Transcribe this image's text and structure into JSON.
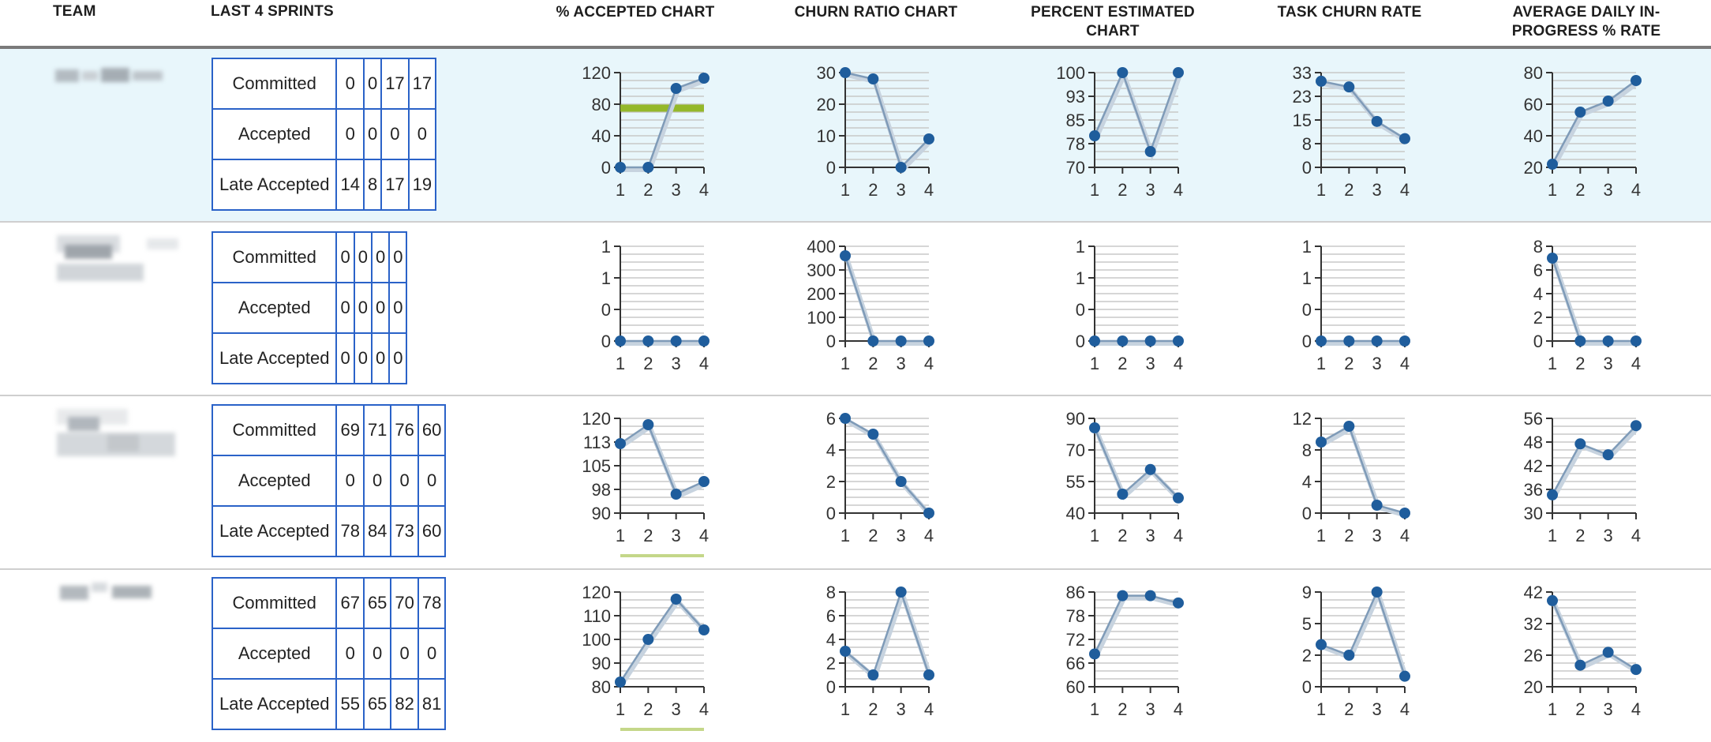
{
  "header": {
    "team": "TEAM",
    "last4": "LAST 4 SPRINTS",
    "accepted": "% ACCEPTED CHART",
    "churn": "CHURN RATIO CHART",
    "estimated_l1": "PERCENT ESTIMATED",
    "estimated_l2": "CHART",
    "task_churn": "TASK CHURN RATE",
    "daily_l1": "AVERAGE DAILY IN-",
    "daily_l2": "PROGRESS % RATE"
  },
  "colors": {
    "accent_line": "#2a62c8",
    "point": "#1f5d9c",
    "target": "#94b82a",
    "selected_row": "#e8f6fb"
  },
  "rows": [
    {
      "team": "",
      "sprints": [
        {
          "label": "Committed",
          "values": [
            "0",
            "0",
            "17",
            "17"
          ]
        },
        {
          "label": "Accepted",
          "values": [
            "0",
            "0",
            "0",
            "0"
          ]
        },
        {
          "label": "Late Accepted",
          "values": [
            "14",
            "8",
            "17",
            "19"
          ]
        }
      ]
    },
    {
      "team": "",
      "sprints": [
        {
          "label": "Committed",
          "values": [
            "0",
            "0",
            "0",
            "0"
          ]
        },
        {
          "label": "Accepted",
          "values": [
            "0",
            "0",
            "0",
            "0"
          ]
        },
        {
          "label": "Late Accepted",
          "values": [
            "0",
            "0",
            "0",
            "0"
          ]
        }
      ]
    },
    {
      "team": "",
      "sprints": [
        {
          "label": "Committed",
          "values": [
            "69",
            "71",
            "76",
            "60"
          ]
        },
        {
          "label": "Accepted",
          "values": [
            "0",
            "0",
            "0",
            "0"
          ]
        },
        {
          "label": "Late Accepted",
          "values": [
            "78",
            "84",
            "73",
            "60"
          ]
        }
      ]
    },
    {
      "team": "",
      "sprints": [
        {
          "label": "Committed",
          "values": [
            "67",
            "65",
            "70",
            "78"
          ]
        },
        {
          "label": "Accepted",
          "values": [
            "0",
            "0",
            "0",
            "0"
          ]
        },
        {
          "label": "Late Accepted",
          "values": [
            "55",
            "65",
            "82",
            "81"
          ]
        }
      ]
    }
  ],
  "chart_data": [
    {
      "type": "line",
      "row": 0,
      "column": "% ACCEPTED CHART",
      "x": [
        1,
        2,
        3,
        4
      ],
      "values": [
        0,
        0,
        100,
        113
      ],
      "yticks": [
        "120",
        "80",
        "40",
        "0"
      ],
      "ylim": [
        0,
        120
      ],
      "target": 75
    },
    {
      "type": "line",
      "row": 0,
      "column": "CHURN RATIO CHART",
      "x": [
        1,
        2,
        3,
        4
      ],
      "values": [
        30,
        28,
        0,
        9
      ],
      "yticks": [
        "30",
        "20",
        "10",
        "0"
      ],
      "ylim": [
        0,
        30
      ]
    },
    {
      "type": "line",
      "row": 0,
      "column": "PERCENT ESTIMATED CHART",
      "x": [
        1,
        2,
        3,
        4
      ],
      "values": [
        80,
        100,
        75,
        100
      ],
      "yticks": [
        "100",
        "93",
        "85",
        "78",
        "70"
      ],
      "ylim": [
        70,
        100
      ]
    },
    {
      "type": "line",
      "row": 0,
      "column": "TASK CHURN RATE",
      "x": [
        1,
        2,
        3,
        4
      ],
      "values": [
        30,
        28,
        16,
        10
      ],
      "yticks": [
        "33",
        "23",
        "15",
        "8",
        "0"
      ],
      "ylim": [
        0,
        33
      ]
    },
    {
      "type": "line",
      "row": 0,
      "column": "AVERAGE DAILY IN-PROGRESS % RATE",
      "x": [
        1,
        2,
        3,
        4
      ],
      "values": [
        22,
        55,
        62,
        75
      ],
      "yticks": [
        "80",
        "60",
        "40",
        "20"
      ],
      "ylim": [
        20,
        80
      ]
    },
    {
      "type": "line",
      "row": 1,
      "column": "% ACCEPTED CHART",
      "x": [
        1,
        2,
        3,
        4
      ],
      "values": [
        0,
        0,
        0,
        0
      ],
      "yticks": [
        "1",
        "1",
        "0",
        "0"
      ],
      "ylim": [
        0,
        1
      ]
    },
    {
      "type": "line",
      "row": 1,
      "column": "CHURN RATIO CHART",
      "x": [
        1,
        2,
        3,
        4
      ],
      "values": [
        360,
        0,
        0,
        0
      ],
      "yticks": [
        "400",
        "300",
        "200",
        "100",
        "0"
      ],
      "ylim": [
        0,
        400
      ]
    },
    {
      "type": "line",
      "row": 1,
      "column": "PERCENT ESTIMATED CHART",
      "x": [
        1,
        2,
        3,
        4
      ],
      "values": [
        0,
        0,
        0,
        0
      ],
      "yticks": [
        "1",
        "1",
        "0",
        "0"
      ],
      "ylim": [
        0,
        1
      ]
    },
    {
      "type": "line",
      "row": 1,
      "column": "TASK CHURN RATE",
      "x": [
        1,
        2,
        3,
        4
      ],
      "values": [
        0,
        0,
        0,
        0
      ],
      "yticks": [
        "1",
        "1",
        "0",
        "0"
      ],
      "ylim": [
        0,
        1
      ]
    },
    {
      "type": "line",
      "row": 1,
      "column": "AVERAGE DAILY IN-PROGRESS % RATE",
      "x": [
        1,
        2,
        3,
        4
      ],
      "values": [
        7,
        0,
        0,
        0
      ],
      "yticks": [
        "8",
        "6",
        "4",
        "2",
        "0"
      ],
      "ylim": [
        0,
        8
      ]
    },
    {
      "type": "line",
      "row": 2,
      "column": "% ACCEPTED CHART",
      "x": [
        1,
        2,
        3,
        4
      ],
      "values": [
        112,
        118,
        96,
        100
      ],
      "yticks": [
        "120",
        "113",
        "105",
        "98",
        "90"
      ],
      "ylim": [
        90,
        120
      ],
      "target": 75
    },
    {
      "type": "line",
      "row": 2,
      "column": "CHURN RATIO CHART",
      "x": [
        1,
        2,
        3,
        4
      ],
      "values": [
        6,
        5,
        2,
        0
      ],
      "yticks": [
        "6",
        "4",
        "2",
        "0"
      ],
      "ylim": [
        0,
        6
      ]
    },
    {
      "type": "line",
      "row": 2,
      "column": "PERCENT ESTIMATED CHART",
      "x": [
        1,
        2,
        3,
        4
      ],
      "values": [
        85,
        50,
        63,
        48
      ],
      "yticks": [
        "90",
        "70",
        "55",
        "40"
      ],
      "ylim": [
        40,
        90
      ]
    },
    {
      "type": "line",
      "row": 2,
      "column": "TASK CHURN RATE",
      "x": [
        1,
        2,
        3,
        4
      ],
      "values": [
        9,
        11,
        1,
        0
      ],
      "yticks": [
        "12",
        "8",
        "4",
        "0"
      ],
      "ylim": [
        0,
        12
      ]
    },
    {
      "type": "line",
      "row": 2,
      "column": "AVERAGE DAILY IN-PROGRESS % RATE",
      "x": [
        1,
        2,
        3,
        4
      ],
      "values": [
        35,
        49,
        46,
        54
      ],
      "yticks": [
        "56",
        "48",
        "42",
        "36",
        "30"
      ],
      "ylim": [
        30,
        56
      ]
    },
    {
      "type": "line",
      "row": 3,
      "column": "% ACCEPTED CHART",
      "x": [
        1,
        2,
        3,
        4
      ],
      "values": [
        82,
        100,
        117,
        104
      ],
      "yticks": [
        "120",
        "110",
        "100",
        "90",
        "80"
      ],
      "ylim": [
        80,
        120
      ],
      "target": 75
    },
    {
      "type": "line",
      "row": 3,
      "column": "CHURN RATIO CHART",
      "x": [
        1,
        2,
        3,
        4
      ],
      "values": [
        3,
        1,
        8,
        1
      ],
      "yticks": [
        "8",
        "6",
        "4",
        "2",
        "0"
      ],
      "ylim": [
        0,
        8
      ]
    },
    {
      "type": "line",
      "row": 3,
      "column": "PERCENT ESTIMATED CHART",
      "x": [
        1,
        2,
        3,
        4
      ],
      "values": [
        69,
        85,
        85,
        83
      ],
      "yticks": [
        "86",
        "78",
        "72",
        "66",
        "60"
      ],
      "ylim": [
        60,
        86
      ]
    },
    {
      "type": "line",
      "row": 3,
      "column": "TASK CHURN RATE",
      "x": [
        1,
        2,
        3,
        4
      ],
      "values": [
        4,
        3,
        9,
        1
      ],
      "yticks": [
        "9",
        "5",
        "2",
        "0"
      ],
      "ylim": [
        0,
        9
      ]
    },
    {
      "type": "line",
      "row": 3,
      "column": "AVERAGE DAILY IN-PROGRESS % RATE",
      "x": [
        1,
        2,
        3,
        4
      ],
      "values": [
        40,
        25,
        28,
        24
      ],
      "yticks": [
        "42",
        "32",
        "26",
        "20"
      ],
      "ylim": [
        20,
        42
      ]
    }
  ]
}
